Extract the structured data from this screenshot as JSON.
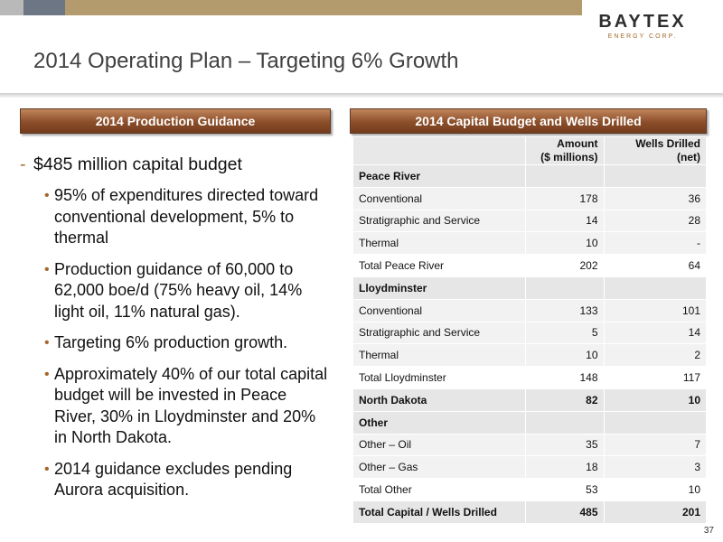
{
  "logo": {
    "name": "BAYTEX",
    "subtitle": "ENERGY CORP."
  },
  "title": "2014 Operating Plan – Targeting 6% Growth",
  "left_panel": {
    "header": "2014 Production Guidance",
    "main_bullet": "$485 million capital budget",
    "sub_bullets": [
      "95% of expenditures directed toward conventional development, 5% to thermal",
      "Production guidance of 60,000 to 62,000 boe/d (75% heavy oil, 14% light oil, 11% natural gas).",
      "Targeting 6% production growth.",
      "Approximately 40% of our total capital budget will be invested in Peace River, 30% in Lloydminster and 20% in North Dakota.",
      "2014 guidance excludes pending Aurora acquisition."
    ]
  },
  "right_panel": {
    "header": "2014 Capital Budget and Wells Drilled",
    "columns": {
      "amount_line1": "Amount",
      "amount_line2": "($ millions)",
      "wells_line1": "Wells Drilled",
      "wells_line2": "(net)"
    },
    "rows": [
      {
        "label": "Peace River",
        "amount": "",
        "wells": ""
      },
      {
        "label": "Conventional",
        "amount": "178",
        "wells": "36"
      },
      {
        "label": "Stratigraphic and Service",
        "amount": "14",
        "wells": "28"
      },
      {
        "label": "Thermal",
        "amount": "10",
        "wells": "-"
      },
      {
        "label": "Total Peace River",
        "amount": "202",
        "wells": "64"
      },
      {
        "label": "Lloydminster",
        "amount": "",
        "wells": ""
      },
      {
        "label": "Conventional",
        "amount": "133",
        "wells": "101"
      },
      {
        "label": "Stratigraphic and Service",
        "amount": "5",
        "wells": "14"
      },
      {
        "label": "Thermal",
        "amount": "10",
        "wells": "2"
      },
      {
        "label": "Total Lloydminster",
        "amount": "148",
        "wells": "117"
      },
      {
        "label": "North Dakota",
        "amount": "82",
        "wells": "10"
      },
      {
        "label": "Other",
        "amount": "",
        "wells": ""
      },
      {
        "label": "Other – Oil",
        "amount": "35",
        "wells": "7"
      },
      {
        "label": "Other – Gas",
        "amount": "18",
        "wells": "3"
      },
      {
        "label": "Total Other",
        "amount": "53",
        "wells": "10"
      },
      {
        "label": "Total Capital / Wells Drilled",
        "amount": "485",
        "wells": "201"
      }
    ]
  },
  "page_number": "37",
  "colors": {
    "accent_brown": "#8b4e2a",
    "bullet_accent": "#a4662f",
    "band_tan": "#b39b6d",
    "band_slate": "#6c7684"
  }
}
